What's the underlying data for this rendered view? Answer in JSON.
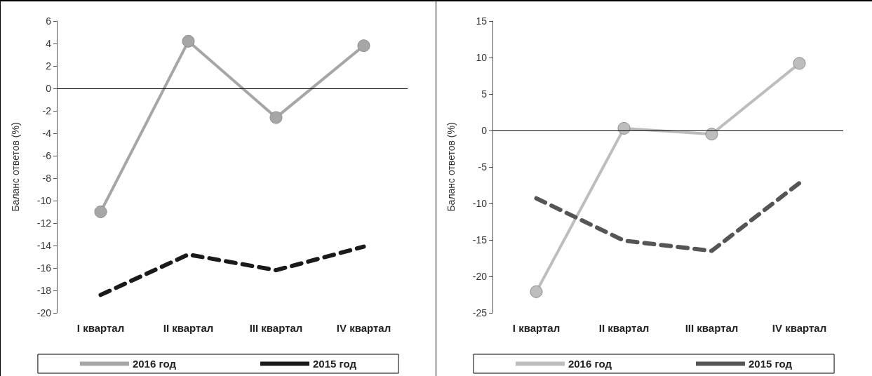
{
  "chart_data": [
    {
      "type": "line",
      "ylabel": "Баланс ответов (%)",
      "categories": [
        "I квартал",
        "II квартал",
        "III квартал",
        "IV квартал"
      ],
      "series": [
        {
          "name": "2016 год",
          "color": "#a6a6a6",
          "values": [
            -11,
            4.2,
            -2.6,
            3.8
          ],
          "marker": "circle",
          "line_style": "solid"
        },
        {
          "name": "2015 год",
          "color": "#1a1a1a",
          "values": [
            -18.4,
            -14.8,
            -16.2,
            -14.1
          ],
          "marker": "none",
          "line_style": "dashed"
        }
      ],
      "ylim": [
        -20,
        6
      ],
      "yticks": [
        -20,
        -18,
        -16,
        -14,
        -12,
        -10,
        -8,
        -6,
        -4,
        -2,
        0,
        2,
        4,
        6
      ],
      "grid": false,
      "legend": "bottom",
      "ref_lines": [
        {
          "axis": "y",
          "value": 0
        }
      ]
    },
    {
      "type": "line",
      "ylabel": "Баланс ответов (%)",
      "categories": [
        "I квартал",
        "II квартал",
        "III квартал",
        "IV квартал"
      ],
      "series": [
        {
          "name": "2016 год",
          "color": "#bdbdbd",
          "values": [
            -22.1,
            0.3,
            -0.5,
            9.2
          ],
          "marker": "circle",
          "line_style": "solid"
        },
        {
          "name": "2015 год",
          "color": "#555555",
          "values": [
            -9.3,
            -15.1,
            -16.5,
            -7.2
          ],
          "marker": "none",
          "line_style": "dashed"
        }
      ],
      "ylim": [
        -25,
        15
      ],
      "yticks": [
        -25,
        -20,
        -15,
        -10,
        -5,
        0,
        5,
        10,
        15
      ],
      "grid": false,
      "legend": "bottom",
      "ref_lines": [
        {
          "axis": "y",
          "value": 0
        }
      ]
    }
  ]
}
